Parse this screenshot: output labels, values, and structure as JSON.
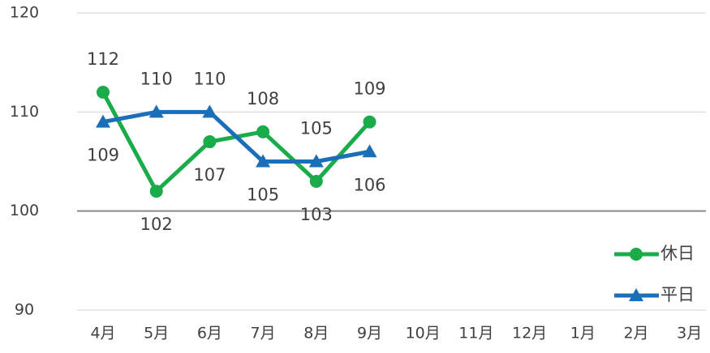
{
  "chart_data": {
    "type": "line",
    "categories": [
      "4月",
      "5月",
      "6月",
      "7月",
      "8月",
      "9月",
      "10月",
      "11月",
      "12月",
      "1月",
      "2月",
      "3月"
    ],
    "series": [
      {
        "name": "休日",
        "color": "#1aab4b",
        "marker": "circle",
        "values": [
          112,
          102,
          107,
          108,
          103,
          109,
          null,
          null,
          null,
          null,
          null,
          null
        ]
      },
      {
        "name": "平日",
        "color": "#1a6fb8",
        "marker": "triangle",
        "values": [
          109,
          110,
          110,
          105,
          105,
          106,
          null,
          null,
          null,
          null,
          null,
          null
        ]
      }
    ],
    "ylim": [
      90,
      120
    ],
    "yticks": [
      90,
      100,
      110,
      120
    ],
    "grid": true,
    "x_axis_at": 100,
    "legend": "right"
  }
}
